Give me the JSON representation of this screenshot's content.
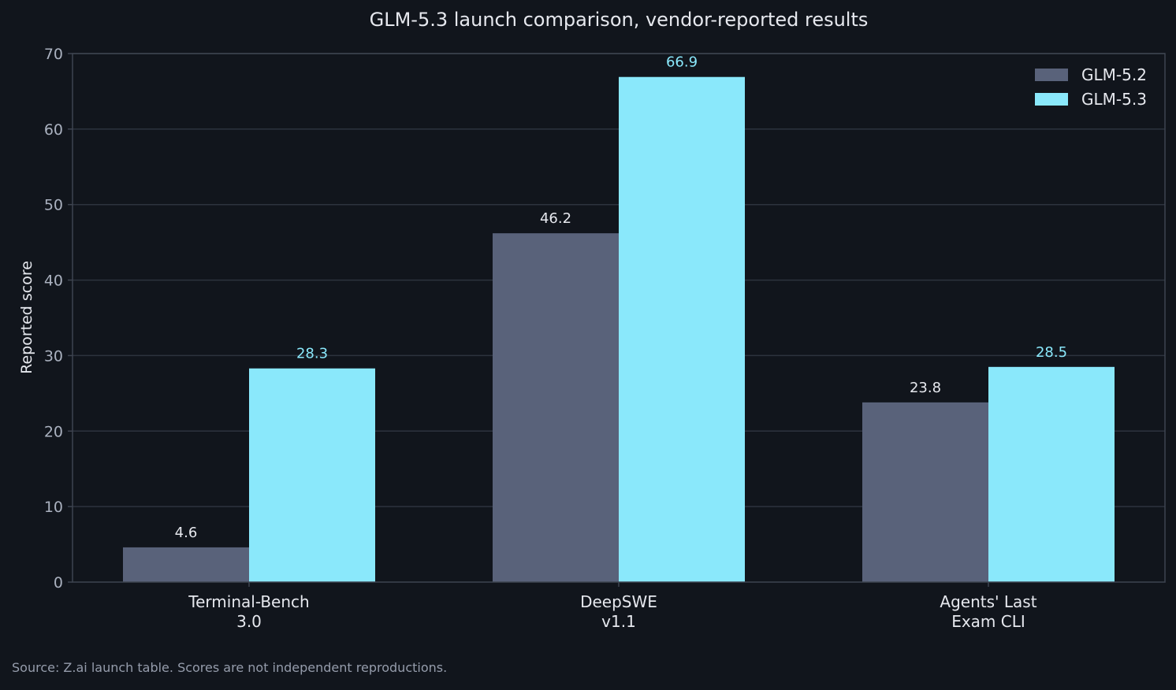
{
  "chart_data": {
    "type": "bar",
    "title": "GLM-5.3 launch comparison, vendor-reported results",
    "xlabel": "",
    "ylabel": "Reported score",
    "ylim": [
      0,
      70
    ],
    "yticks": [
      0,
      10,
      20,
      30,
      40,
      50,
      60,
      70
    ],
    "grid": true,
    "legend_position": "top-right",
    "categories": [
      [
        "Terminal-Bench",
        "3.0"
      ],
      [
        "DeepSWE",
        "v1.1"
      ],
      [
        "Agents' Last",
        "Exam CLI"
      ]
    ],
    "series": [
      {
        "name": "GLM-5.2",
        "color": "#59627a",
        "label_color": "#e6e8ee",
        "values": [
          4.6,
          46.2,
          23.8
        ]
      },
      {
        "name": "GLM-5.3",
        "color": "#8ae8fb",
        "label_color": "#8ae8fb",
        "values": [
          28.3,
          66.9,
          28.5
        ]
      }
    ],
    "footnote": "Source: Z.ai launch table. Scores are not independent reproductions."
  },
  "colors": {
    "background": "#11151c",
    "grid": "#2d333e",
    "axis": "#3e4450",
    "tick_text": "#aab1bf",
    "text": "#e6e8ee",
    "footnote": "#959cab"
  }
}
